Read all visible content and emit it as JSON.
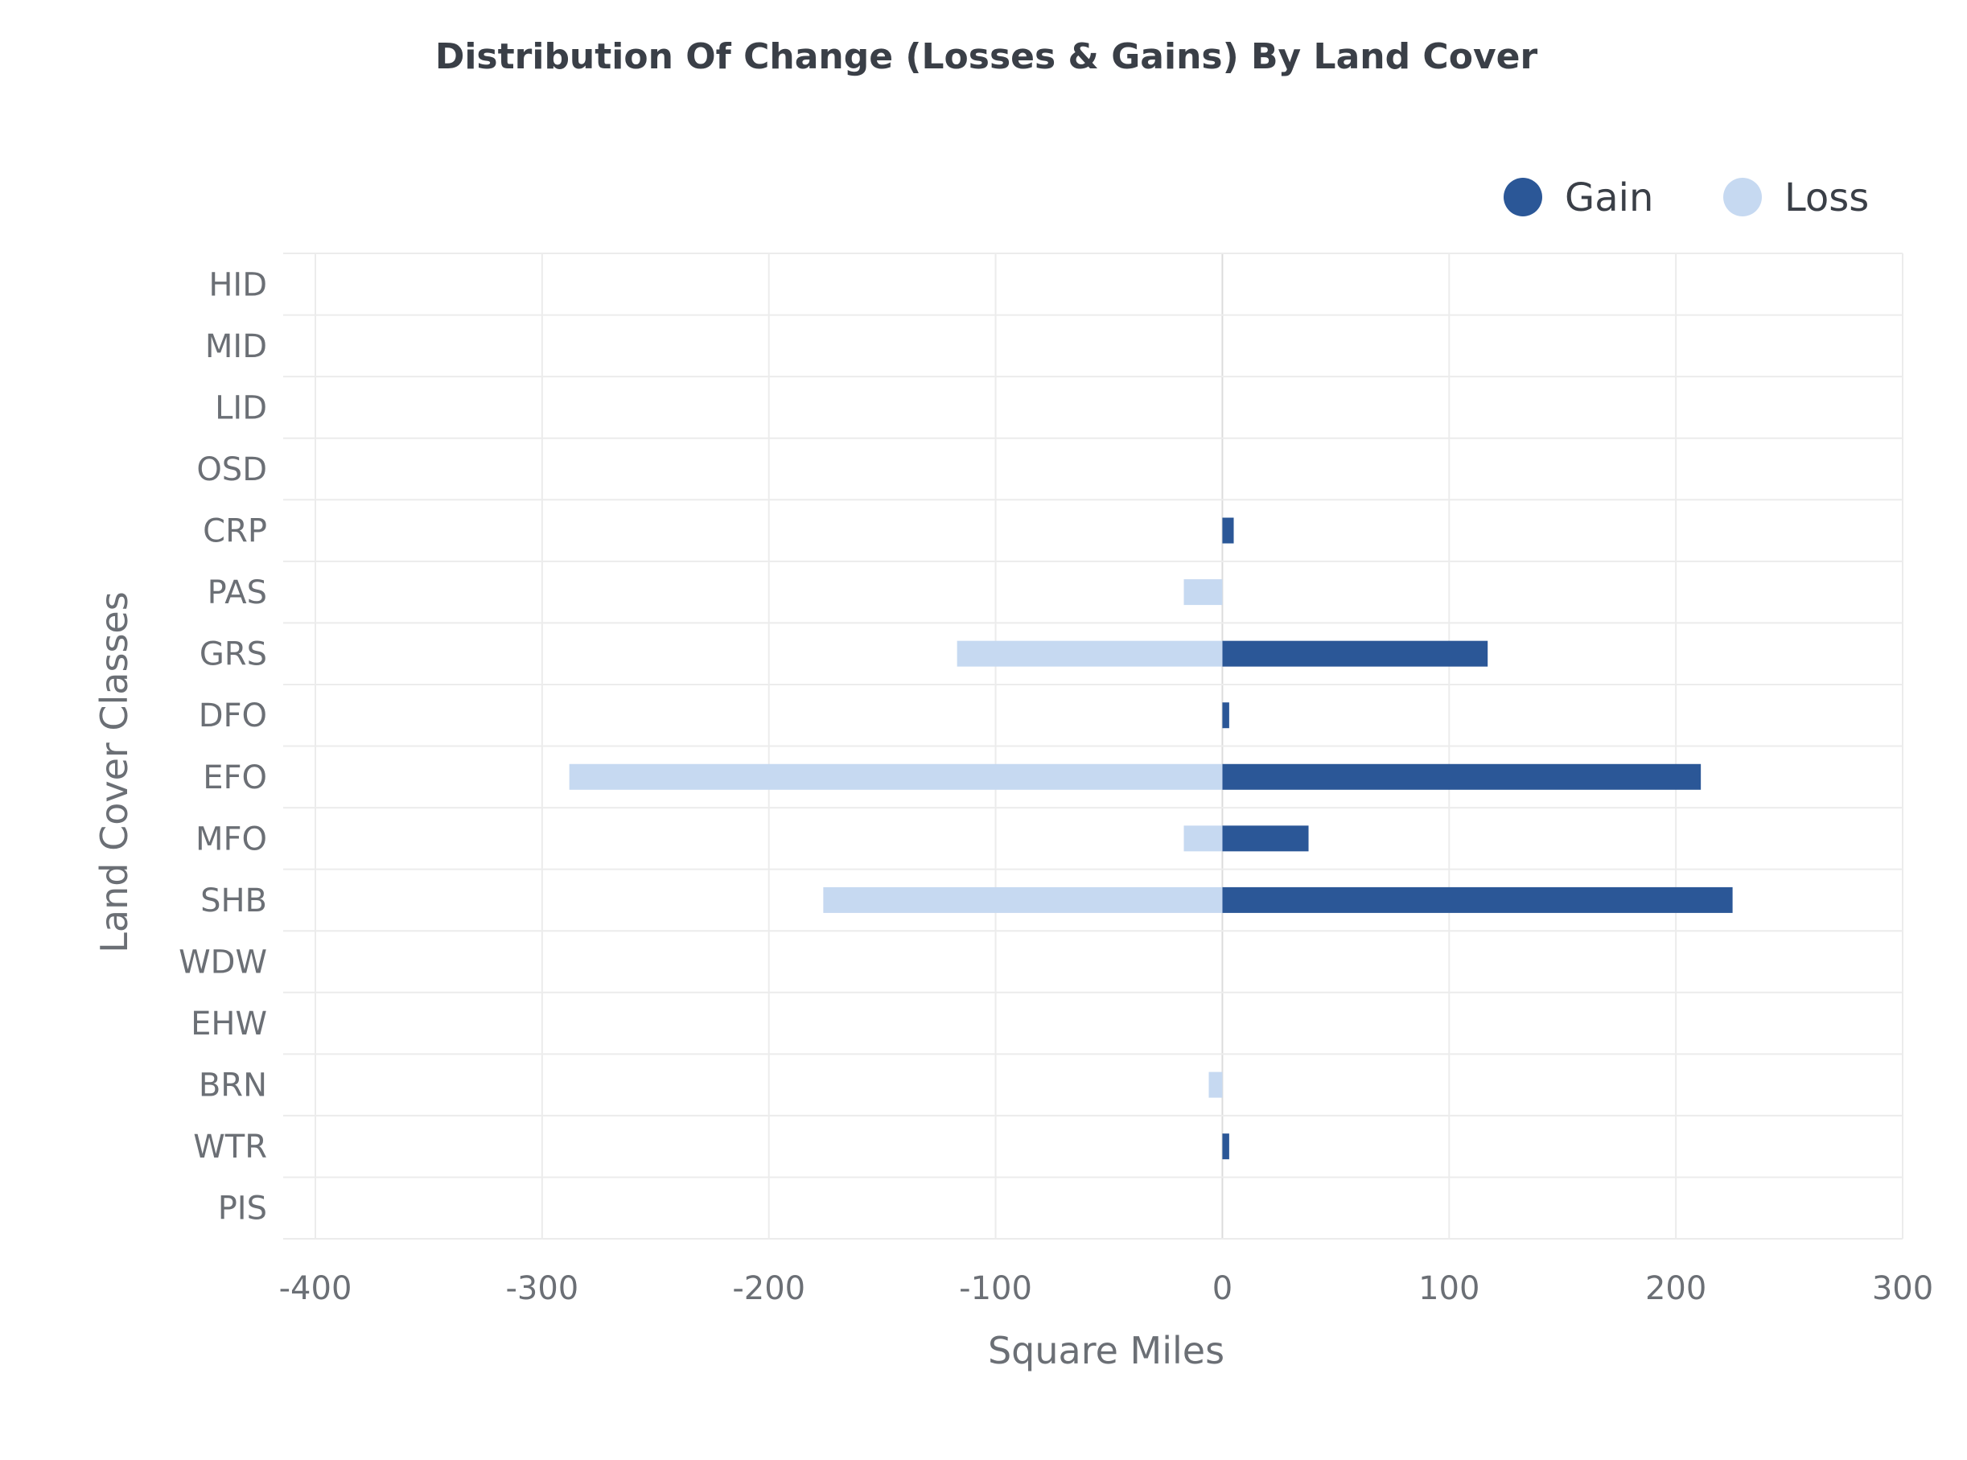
{
  "chart_data": {
    "type": "bar",
    "orientation": "horizontal",
    "title": "Distribution Of Change (Losses & Gains) By Land Cover",
    "xlabel": "Square Miles",
    "ylabel": "Land Cover Classes",
    "xlim": [
      -400,
      300
    ],
    "xticks": [
      -400,
      -300,
      -200,
      -100,
      0,
      100,
      200,
      300
    ],
    "categories": [
      "HID",
      "MID",
      "LID",
      "OSD",
      "CRP",
      "PAS",
      "GRS",
      "DFO",
      "EFO",
      "MFO",
      "SHB",
      "WDW",
      "EHW",
      "BRN",
      "WTR",
      "PIS"
    ],
    "series": [
      {
        "name": "Gain",
        "color": "#2b5797",
        "values": [
          0,
          0,
          0,
          0,
          5,
          0,
          117,
          3,
          211,
          38,
          225,
          0,
          0,
          0,
          3,
          0
        ]
      },
      {
        "name": "Loss",
        "color": "#c6d9f1",
        "values": [
          0,
          0,
          0,
          0,
          0,
          -17,
          -117,
          0,
          -288,
          -17,
          -176,
          0,
          0,
          -6,
          0,
          0
        ]
      }
    ],
    "legend_position": "top-right",
    "grid": true
  }
}
